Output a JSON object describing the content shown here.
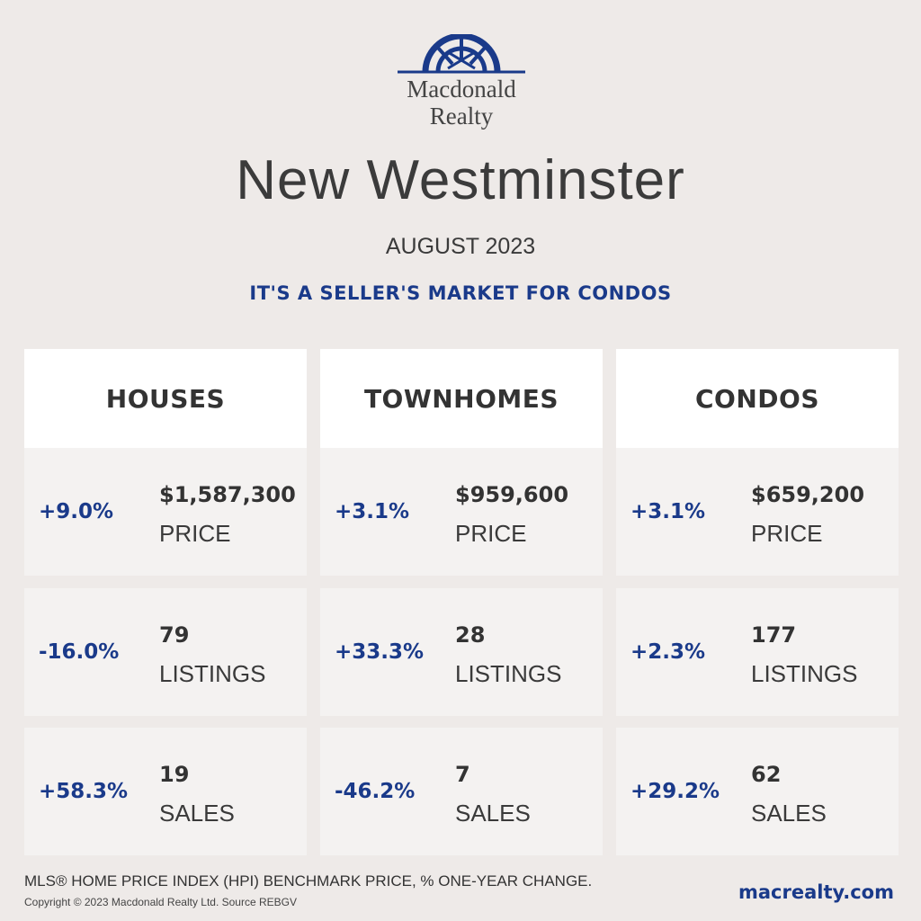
{
  "brand": {
    "logo_line1": "Macdonald",
    "logo_line2": "Realty",
    "logo_icon": "sunburst-arch-icon",
    "brand_color": "#1a3a8a"
  },
  "header": {
    "title": "New Westminster",
    "subtitle": "AUGUST 2023",
    "tagline": "IT'S A SELLER'S MARKET FOR CONDOS"
  },
  "columns": [
    {
      "name": "HOUSES",
      "rows": [
        {
          "change": "+9.0%",
          "value": "$1,587,300",
          "label": "PRICE"
        },
        {
          "change": "-16.0%",
          "value": "79",
          "label": "LISTINGS"
        },
        {
          "change": "+58.3%",
          "value": "19",
          "label": "SALES"
        }
      ]
    },
    {
      "name": "TOWNHOMES",
      "rows": [
        {
          "change": "+3.1%",
          "value": "$959,600",
          "label": "PRICE"
        },
        {
          "change": "+33.3%",
          "value": "28",
          "label": "LISTINGS"
        },
        {
          "change": "-46.2%",
          "value": "7",
          "label": "SALES"
        }
      ]
    },
    {
      "name": "CONDOS",
      "rows": [
        {
          "change": "+3.1%",
          "value": "$659,200",
          "label": "PRICE"
        },
        {
          "change": "+2.3%",
          "value": "177",
          "label": "LISTINGS"
        },
        {
          "change": "+29.2%",
          "value": "62",
          "label": "SALES"
        }
      ]
    }
  ],
  "footer": {
    "note": "MLS® HOME PRICE INDEX (HPI) BENCHMARK PRICE, % ONE-YEAR CHANGE.",
    "copyright": "Copyright © 2023 Macdonald Realty Ltd. Source REBGV",
    "website": "macrealty.com"
  }
}
